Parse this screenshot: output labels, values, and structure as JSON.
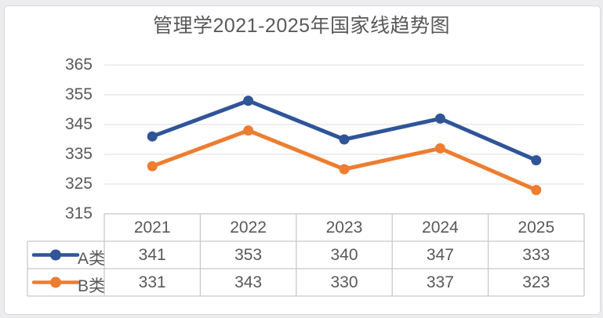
{
  "chart_data": {
    "type": "line",
    "title": "管理学2021-2025年国家线趋势图",
    "categories": [
      "2021",
      "2022",
      "2023",
      "2024",
      "2025"
    ],
    "series": [
      {
        "name": "A类",
        "key": "series-a",
        "color": "#2F5597",
        "values": [
          341,
          353,
          340,
          347,
          333
        ]
      },
      {
        "name": "B类",
        "key": "series-b",
        "color": "#ED7D31",
        "values": [
          331,
          343,
          330,
          337,
          323
        ]
      }
    ],
    "ylim": [
      315,
      365
    ],
    "yticks": [
      365,
      355,
      345,
      335,
      325,
      315
    ],
    "xlabel": "",
    "ylabel": "",
    "grid": true,
    "markers": true,
    "legend_position": "data-table-left"
  },
  "colors": {
    "grid_line": "#e4e4e4",
    "table_border": "#c9c9c9",
    "text": "#595959",
    "frame_border": "#d8d8d8",
    "background": "#ffffff"
  }
}
